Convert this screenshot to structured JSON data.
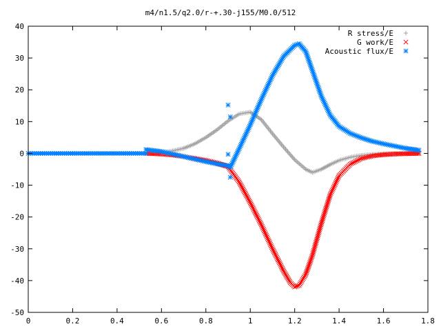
{
  "chart_data": {
    "type": "scatter",
    "title": "m4/n1.5/q2.0/r-+.30-j155/M0.0/512",
    "xlabel": "",
    "ylabel": "",
    "xlim": [
      0,
      1.8
    ],
    "ylim": [
      -50,
      40
    ],
    "x_ticks": [
      "0",
      "0.2",
      "0.4",
      "0.6",
      "0.8",
      "1",
      "1.2",
      "1.4",
      "1.6",
      "1.8"
    ],
    "y_ticks": [
      "40",
      "30",
      "20",
      "10",
      "0",
      "-10",
      "-20",
      "-30",
      "-40",
      "-50"
    ],
    "grid": false,
    "legend_position": "top-right",
    "series": [
      {
        "name": "R stress/E",
        "marker": "+",
        "color": "#a0a0a0",
        "points": [
          [
            0.53,
            0.0
          ],
          [
            0.6,
            0.3
          ],
          [
            0.65,
            0.8
          ],
          [
            0.7,
            1.6
          ],
          [
            0.75,
            3.0
          ],
          [
            0.8,
            5.0
          ],
          [
            0.85,
            7.4
          ],
          [
            0.9,
            10.2
          ],
          [
            0.95,
            12.4
          ],
          [
            1.0,
            13.0
          ],
          [
            1.05,
            10.6
          ],
          [
            1.1,
            6.2
          ],
          [
            1.15,
            2.0
          ],
          [
            1.2,
            -2.0
          ],
          [
            1.25,
            -5.0
          ],
          [
            1.28,
            -6.0
          ],
          [
            1.32,
            -5.0
          ],
          [
            1.36,
            -3.5
          ],
          [
            1.4,
            -2.2
          ],
          [
            1.45,
            -1.2
          ],
          [
            1.5,
            -0.6
          ],
          [
            1.55,
            -0.3
          ],
          [
            1.6,
            -0.1
          ],
          [
            1.65,
            0.0
          ],
          [
            1.7,
            0.0
          ],
          [
            1.76,
            0.0
          ]
        ]
      },
      {
        "name": "G work/E",
        "marker": "x",
        "color": "#ff0000",
        "points": [
          [
            0.53,
            0.0
          ],
          [
            0.6,
            -0.2
          ],
          [
            0.65,
            -0.5
          ],
          [
            0.7,
            -1.0
          ],
          [
            0.75,
            -1.6
          ],
          [
            0.8,
            -2.2
          ],
          [
            0.85,
            -3.0
          ],
          [
            0.9,
            -4.2
          ],
          [
            0.95,
            -9.0
          ],
          [
            1.0,
            -15.5
          ],
          [
            1.05,
            -22.5
          ],
          [
            1.1,
            -30.0
          ],
          [
            1.15,
            -37.0
          ],
          [
            1.18,
            -40.6
          ],
          [
            1.2,
            -42.0
          ],
          [
            1.22,
            -41.5
          ],
          [
            1.25,
            -38.0
          ],
          [
            1.28,
            -32.0
          ],
          [
            1.32,
            -22.0
          ],
          [
            1.36,
            -13.0
          ],
          [
            1.4,
            -7.0
          ],
          [
            1.45,
            -3.4
          ],
          [
            1.5,
            -1.6
          ],
          [
            1.55,
            -0.8
          ],
          [
            1.6,
            -0.4
          ],
          [
            1.65,
            -0.2
          ],
          [
            1.7,
            -0.1
          ],
          [
            1.76,
            0.0
          ]
        ]
      },
      {
        "name": "Acoustic flux/E",
        "marker": "*",
        "color": "#0080ff",
        "points": [
          [
            0.0,
            0.0
          ],
          [
            0.1,
            0.0
          ],
          [
            0.2,
            0.0
          ],
          [
            0.3,
            0.0
          ],
          [
            0.4,
            0.0
          ],
          [
            0.53,
            0.0
          ],
          [
            0.53,
            1.2
          ],
          [
            0.6,
            0.6
          ],
          [
            0.65,
            -0.2
          ],
          [
            0.7,
            -1.0
          ],
          [
            0.75,
            -1.8
          ],
          [
            0.8,
            -2.6
          ],
          [
            0.85,
            -3.3
          ],
          [
            0.9,
            -3.9
          ],
          [
            0.91,
            -4.4
          ],
          [
            0.95,
            1.5
          ],
          [
            1.0,
            9.0
          ],
          [
            1.05,
            17.0
          ],
          [
            1.1,
            24.5
          ],
          [
            1.15,
            30.5
          ],
          [
            1.2,
            34.0
          ],
          [
            1.22,
            34.5
          ],
          [
            1.25,
            32.0
          ],
          [
            1.28,
            26.0
          ],
          [
            1.32,
            18.0
          ],
          [
            1.36,
            12.0
          ],
          [
            1.4,
            8.5
          ],
          [
            1.45,
            6.3
          ],
          [
            1.5,
            4.9
          ],
          [
            1.55,
            3.8
          ],
          [
            1.6,
            3.0
          ],
          [
            1.65,
            2.3
          ],
          [
            1.7,
            1.6
          ],
          [
            1.76,
            1.0
          ],
          [
            0.9,
            15.2
          ],
          [
            0.91,
            11.5
          ],
          [
            0.9,
            -0.3
          ],
          [
            0.91,
            -7.5
          ]
        ]
      }
    ]
  }
}
